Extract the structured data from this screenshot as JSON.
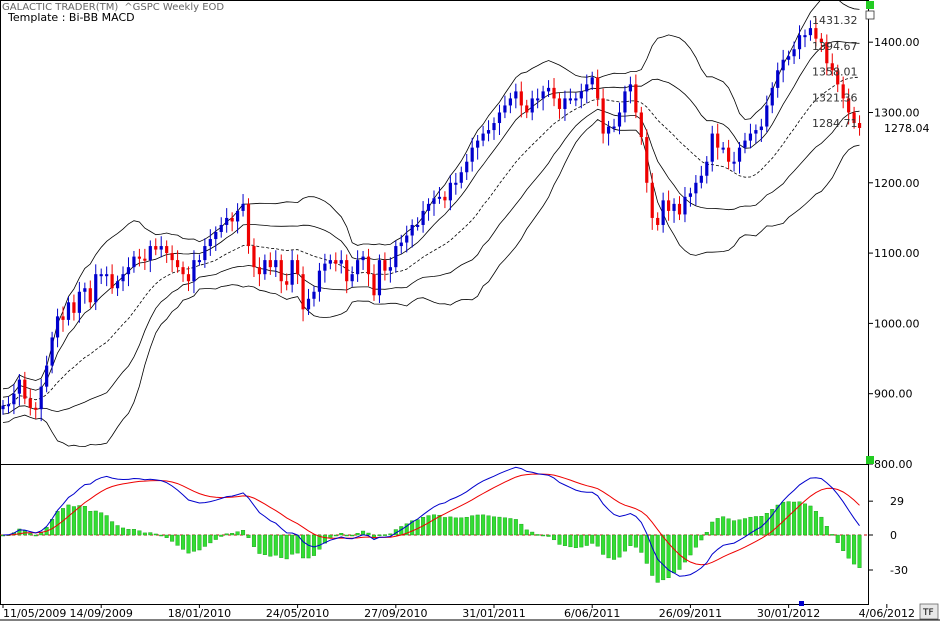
{
  "header": {
    "app_title": "GALACTIC TRADER(TM)",
    "symbol_title": "^GSPC Weekly EOD",
    "template_label": "Template : Bi-BB MACD",
    "tf_button": "TF"
  },
  "colors": {
    "up": "#0000cc",
    "down": "#ee0000",
    "band": "#000000",
    "macd_line": "#0000cc",
    "signal_line": "#ee0000",
    "histogram": "#33dd33",
    "histogram_border": "#119911",
    "zero_line": "#cc0000",
    "marker": "#22cc22"
  },
  "chart_data": [
    {
      "type": "candlestick",
      "title": "^GSPC Weekly EOD",
      "ylim": [
        800,
        1460
      ],
      "y_ticks": [
        "800.00",
        "900.00",
        "1000.00",
        "1100.00",
        "1200.00",
        "1300.00",
        "1400.00"
      ],
      "y_tick_values": [
        800,
        900,
        1000,
        1100,
        1200,
        1300,
        1400
      ],
      "last_price": "1278.04",
      "band_labels": [
        "1431.32",
        "1394.67",
        "1358.01",
        "1321.36",
        "1284.71"
      ],
      "band_label_values": [
        1431.32,
        1394.67,
        1358.01,
        1321.36,
        1284.71
      ],
      "x_labels": [
        "11/05/2009",
        "14/09/2009",
        "18/01/2010",
        "24/05/2010",
        "27/09/2010",
        "31/01/2011",
        "6/06/2011",
        "26/09/2011",
        "30/01/2012",
        "4/06/2012"
      ],
      "x_label_weeks": [
        0,
        18,
        36,
        54,
        72,
        90,
        108,
        126,
        144,
        162
      ],
      "weekly_close": [
        883,
        885,
        900,
        920,
        893,
        880,
        878,
        910,
        940,
        980,
        1010,
        1005,
        1030,
        1015,
        1045,
        1050,
        1030,
        1070,
        1070,
        1070,
        1050,
        1060,
        1070,
        1080,
        1095,
        1092,
        1090,
        1110,
        1105,
        1110,
        1100,
        1090,
        1080,
        1070,
        1060,
        1090,
        1090,
        1110,
        1120,
        1130,
        1140,
        1150,
        1145,
        1160,
        1170,
        1110,
        1080,
        1070,
        1090,
        1080,
        1090,
        1060,
        1055,
        1090,
        1070,
        1020,
        1035,
        1045,
        1075,
        1085,
        1090,
        1085,
        1090,
        1060,
        1070,
        1090,
        1095,
        1070,
        1040,
        1090,
        1075,
        1080,
        1110,
        1115,
        1125,
        1140,
        1140,
        1160,
        1170,
        1178,
        1180,
        1175,
        1200,
        1200,
        1215,
        1230,
        1250,
        1260,
        1270,
        1275,
        1285,
        1300,
        1310,
        1320,
        1330,
        1310,
        1300,
        1320,
        1320,
        1330,
        1335,
        1320,
        1305,
        1320,
        1320,
        1320,
        1330,
        1340,
        1350,
        1320,
        1270,
        1280,
        1280,
        1300,
        1330,
        1340,
        1300,
        1265,
        1200,
        1150,
        1140,
        1175,
        1160,
        1170,
        1155,
        1180,
        1185,
        1200,
        1210,
        1230,
        1270,
        1250,
        1250,
        1230,
        1230,
        1250,
        1260,
        1270,
        1275,
        1280,
        1310,
        1335,
        1360,
        1375,
        1380,
        1390,
        1410,
        1410,
        1420,
        1405,
        1400,
        1370,
        1360,
        1340,
        1320,
        1300,
        1285,
        1278
      ],
      "macd_axis_ticks": [
        "29",
        "0",
        "-30"
      ],
      "macd_axis_values": [
        29,
        0,
        -30
      ],
      "macd_ylim": [
        -60,
        60
      ]
    }
  ]
}
